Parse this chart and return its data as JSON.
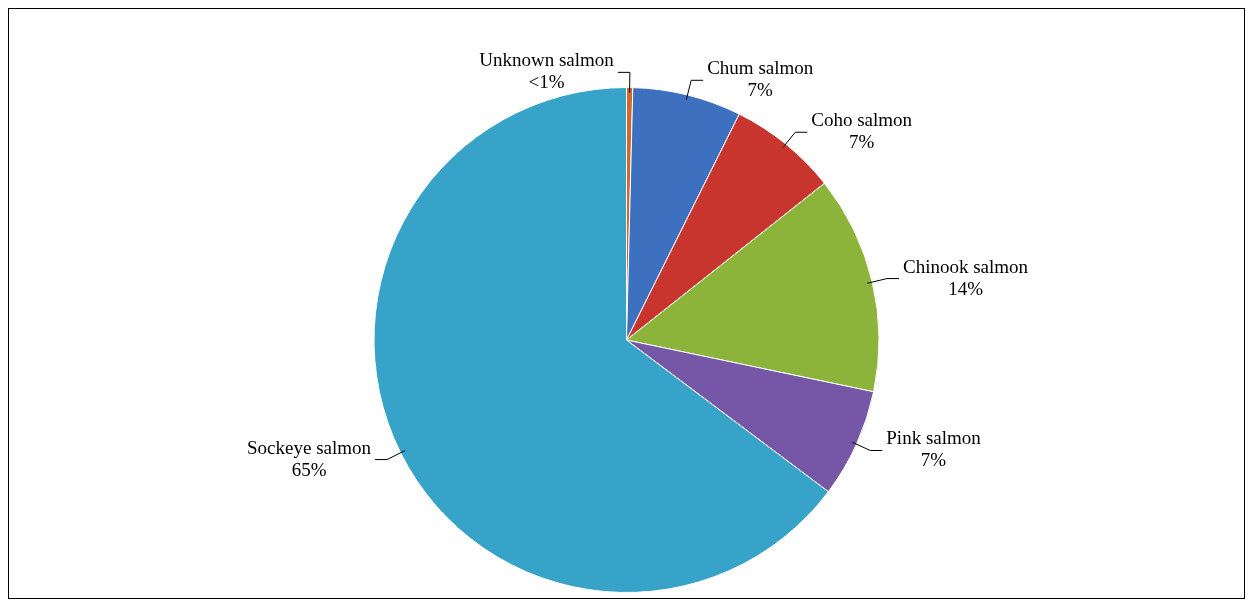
{
  "chart_data": {
    "type": "pie",
    "categories": [
      "Unknown salmon",
      "Chum salmon",
      "Coho salmon",
      "Chinook salmon",
      "Pink salmon",
      "Sockeye salmon"
    ],
    "values": [
      0.4,
      7,
      7,
      14,
      7,
      65
    ],
    "value_labels": [
      "<1%",
      "7%",
      "7%",
      "14%",
      "7%",
      "65%"
    ],
    "colors": [
      "#d2692a",
      "#3d70bf",
      "#c8352e",
      "#8cb43a",
      "#7656a6",
      "#38a3c8"
    ],
    "legend": false
  }
}
